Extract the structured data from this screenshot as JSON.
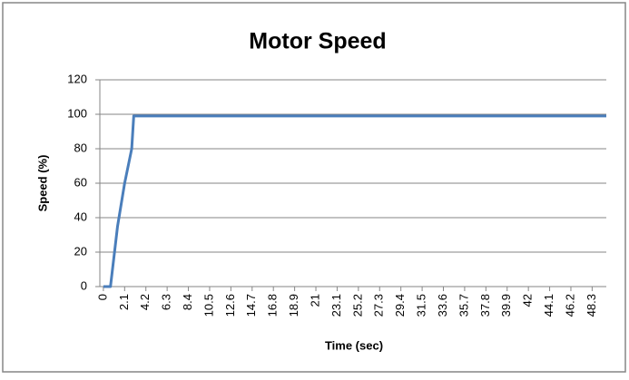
{
  "chart_data": {
    "type": "line",
    "title": "Motor Speed",
    "x_label": "Time (sec)",
    "y_label": "Speed (%)",
    "x": [
      0,
      0.7,
      1.4,
      2.1,
      2.8,
      3.0,
      3.5,
      49.7
    ],
    "series": [
      {
        "name": "Speed",
        "color": "#4a7ebb",
        "values": [
          0,
          0,
          35,
          60,
          80,
          99,
          99,
          99
        ]
      }
    ],
    "xlim": [
      -0.35,
      49.7
    ],
    "xticks": [
      0,
      2.1,
      4.2,
      6.3,
      8.4,
      10.5,
      12.6,
      14.7,
      16.8,
      18.9,
      21,
      23.1,
      25.2,
      27.3,
      29.4,
      31.5,
      33.6,
      35.7,
      37.8,
      39.9,
      42,
      44.1,
      46.2,
      48.3
    ],
    "ylim": [
      0,
      120
    ],
    "yticks": [
      0,
      20,
      40,
      60,
      80,
      100,
      120
    ],
    "grid": true,
    "legend": false
  }
}
